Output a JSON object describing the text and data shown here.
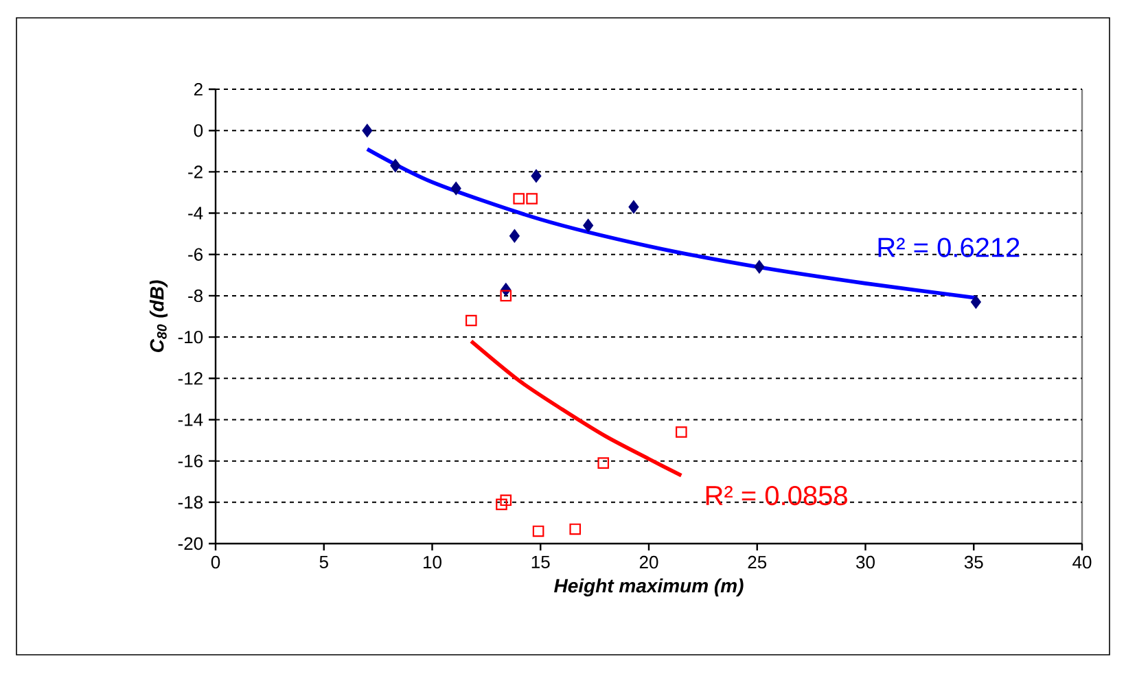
{
  "chart_data": {
    "type": "scatter",
    "xlabel": "Height maximum (m)",
    "ylabel": "C$_{80}$ (dB)",
    "xlim": [
      0,
      40
    ],
    "xticks": [
      0,
      5,
      10,
      15,
      20,
      25,
      30,
      35,
      40
    ],
    "ylim": [
      -20,
      2
    ],
    "yticks": [
      -20,
      -18,
      -16,
      -14,
      -12,
      -10,
      -8,
      -6,
      -4,
      -2,
      0,
      2
    ],
    "grid": "y",
    "series": [
      {
        "marker": "diamond",
        "color": "#000080",
        "x": [
          7.0,
          8.3,
          11.1,
          14.8,
          13.8,
          13.4,
          17.2,
          19.3,
          25.1,
          35.1
        ],
        "values": [
          0,
          -1.7,
          -2.8,
          -2.2,
          -5.1,
          -7.7,
          -4.6,
          -3.7,
          -6.6,
          -8.3
        ]
      },
      {
        "marker": "square",
        "color": "#ff0000",
        "x": [
          14.0,
          14.6,
          13.4,
          11.8,
          21.5,
          17.9,
          13.2,
          13.4,
          14.9,
          16.6
        ],
        "values": [
          -3.3,
          -3.3,
          -8.0,
          -9.2,
          -14.6,
          -16.1,
          -18.1,
          -17.9,
          -19.4,
          -19.3
        ]
      },
      {
        "type": "line",
        "color": "#0000ff",
        "x": [
          7,
          10,
          15,
          20,
          25,
          30,
          35.1
        ],
        "values": [
          -0.9,
          -2.5,
          -4.3,
          -5.6,
          -6.6,
          -7.4,
          -8.1
        ]
      },
      {
        "type": "line",
        "color": "#ff0000",
        "x": [
          11.8,
          14,
          16,
          18,
          20,
          21.5
        ],
        "values": [
          -10.2,
          -12.1,
          -13.5,
          -14.8,
          -15.9,
          -16.7
        ]
      }
    ],
    "annotations": [
      "R² = 0.6212",
      "R² = 0.0858"
    ]
  }
}
